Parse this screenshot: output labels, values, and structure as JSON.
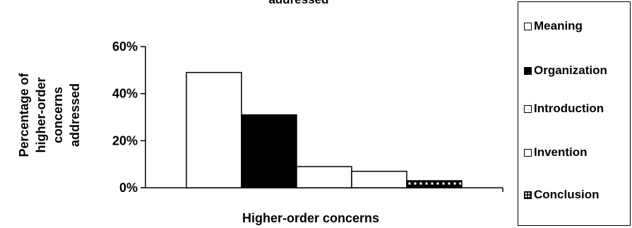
{
  "chart_data": {
    "type": "bar",
    "title": "addressed",
    "xlabel": "Higher-order concerns",
    "ylabel": [
      "Percentage of",
      "higher-order",
      "concerns",
      "addressed"
    ],
    "ylim": [
      0,
      60
    ],
    "yticks": [
      "0%",
      "20%",
      "40%",
      "60%"
    ],
    "grid": false,
    "legend_position": "right",
    "series": [
      {
        "name": "Meaning",
        "value": 49,
        "fill": "#ffffff",
        "pattern": "none"
      },
      {
        "name": "Organization",
        "value": 31,
        "fill": "#000000",
        "pattern": "none"
      },
      {
        "name": "Introduction",
        "value": 9,
        "fill": "#ffffff",
        "pattern": "none"
      },
      {
        "name": "Invention",
        "value": 7,
        "fill": "#ffffff",
        "pattern": "none"
      },
      {
        "name": "Conclusion",
        "value": 3,
        "fill": "#000000",
        "pattern": "dots"
      }
    ]
  }
}
